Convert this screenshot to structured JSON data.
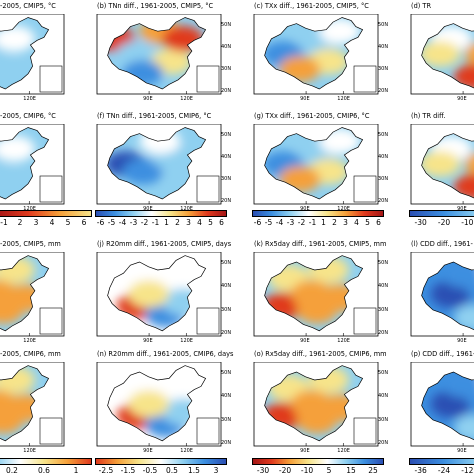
{
  "panels": [
    {
      "id": "a",
      "title": "-2005, CMIP5, °C",
      "scheme": "div",
      "mid": "#f8f0c8",
      "pattern": "mild"
    },
    {
      "id": "b",
      "title": "(b) TNn diff., 1961-2005, CMIP5, °C",
      "scheme": "div",
      "pattern": "strong-warm"
    },
    {
      "id": "c",
      "title": "(c) TXx diff., 1961-2005, CMIP5, °C",
      "scheme": "div",
      "pattern": "mixed"
    },
    {
      "id": "d",
      "title": "(d) TR",
      "scheme": "div",
      "pattern": "warm"
    },
    {
      "id": "e",
      "title": "-2005, CMIP6, °C",
      "scheme": "div",
      "pattern": "mild"
    },
    {
      "id": "f",
      "title": "(f) TNn diff., 1961-2005, CMIP6, °C",
      "scheme": "div",
      "pattern": "cold"
    },
    {
      "id": "g",
      "title": "(g) TXx diff., 1961-2005, CMIP6, °C",
      "scheme": "div",
      "pattern": "mixed"
    },
    {
      "id": "h",
      "title": "(h) TR diff.",
      "scheme": "div",
      "pattern": "warm"
    },
    {
      "id": "i",
      "title": "-2005, CMIP5, mm",
      "scheme": "wet",
      "pattern": "wet"
    },
    {
      "id": "j",
      "title": "(j) R20mm diff., 1961-2005, CMIP5, days",
      "scheme": "wet",
      "pattern": "south"
    },
    {
      "id": "k",
      "title": "(k) Rx5day diff., 1961-2005, CMIP5, mm",
      "scheme": "wet",
      "pattern": "wet"
    },
    {
      "id": "l",
      "title": "(l) CDD diff., 1961-",
      "scheme": "dry",
      "pattern": "dry"
    },
    {
      "id": "m",
      "title": "-2005, CMIP6, mm",
      "scheme": "wet",
      "pattern": "wet"
    },
    {
      "id": "n",
      "title": "(n) R20mm diff., 1961-2005, CMIP6, days",
      "scheme": "wet",
      "pattern": "south"
    },
    {
      "id": "o",
      "title": "(o) Rx5day diff., 1961-2005, CMIP6, mm",
      "scheme": "wet",
      "pattern": "wet"
    },
    {
      "id": "p",
      "title": "(p) CDD diff., 1961-",
      "scheme": "dry",
      "pattern": "dry"
    }
  ],
  "axis_labels": {
    "lon_90": "90E",
    "lon_120": "120E",
    "lat": [
      "50N",
      "40N",
      "30N",
      "20N"
    ]
  },
  "colorbars": [
    {
      "id": "cb1",
      "labels": [
        "-1",
        "2",
        "3",
        "4",
        "5",
        "6"
      ],
      "cut": true
    },
    {
      "id": "cb2",
      "labels": [
        "-6",
        "-5",
        "-4",
        "-3",
        "-2",
        "-1",
        "1",
        "2",
        "3",
        "4",
        "5",
        "6"
      ]
    },
    {
      "id": "cb3",
      "labels": [
        "-6",
        "-5",
        "-4",
        "-3",
        "-2",
        "-1",
        "1",
        "2",
        "3",
        "4",
        "5",
        "6"
      ]
    },
    {
      "id": "cb4",
      "labels": [
        "-30",
        "-20",
        "-10"
      ]
    },
    {
      "id": "cb5",
      "labels": [
        "0.2",
        "0.6",
        "1"
      ],
      "prefix": "-"
    },
    {
      "id": "cb6",
      "labels": [
        "-2.5",
        "-1.5",
        "-0.5",
        "0.5",
        "1.5",
        "3"
      ]
    },
    {
      "id": "cb7",
      "labels": [
        "-30",
        "-20",
        "-10",
        "5",
        "15",
        "25"
      ]
    },
    {
      "id": "cb8",
      "labels": [
        "-36",
        "-24",
        "-12"
      ]
    }
  ],
  "colors": {
    "blue_dark": "#2b4fb3",
    "blue": "#3c8fe0",
    "blue_light": "#8fd0f0",
    "white": "#ffffff",
    "yellow": "#f7e48a",
    "orange": "#f5a03a",
    "red": "#e03a1e",
    "red_dark": "#a51616"
  }
}
